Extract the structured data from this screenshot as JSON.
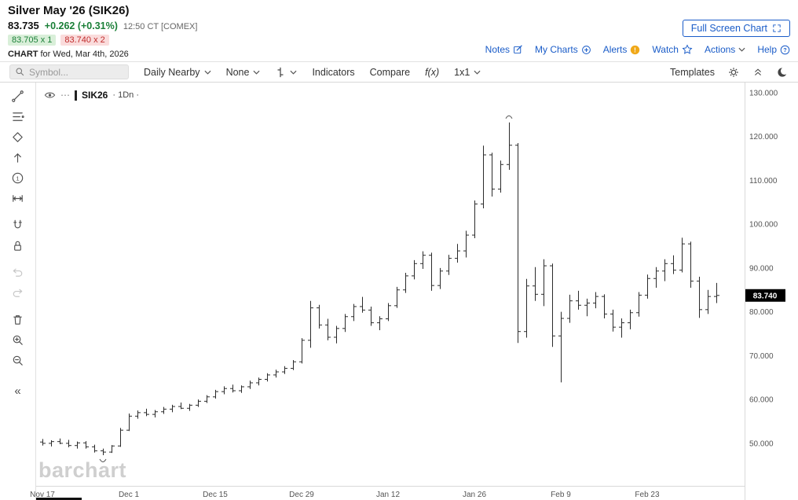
{
  "header": {
    "title": "Silver May '26 (SIK26)",
    "last_price": "83.735",
    "change": "+0.262 (+0.31%)",
    "quote_time": "12:50 CT [COMEX]",
    "bid": "83.705 x 1",
    "ask": "83.740 x 2",
    "chart_label": "CHART",
    "chart_date": "for Wed, Mar 4th, 2026",
    "full_screen_button": "Full Screen Chart",
    "links": [
      {
        "label": "Notes"
      },
      {
        "label": "My Charts"
      },
      {
        "label": "Alerts"
      },
      {
        "label": "Watch"
      },
      {
        "label": "Actions"
      },
      {
        "label": "Help"
      }
    ]
  },
  "toolbar": {
    "symbol_placeholder": "Symbol...",
    "frequency": "Daily Nearby",
    "drawing_tool": "None",
    "indicators": "Indicators",
    "compare": "Compare",
    "fx": "f(x)",
    "layout": "1x1",
    "templates": "Templates"
  },
  "chart": {
    "legend_symbol": "SIK26",
    "legend_interval": "· 1Dn ·",
    "watermark": "barchart"
  },
  "icons": {
    "dots": "⋯",
    "collapse": "«",
    "one": "1",
    "exclaim": "!",
    "question": "?"
  },
  "colors": {
    "link_blue": "#1a5cc8",
    "up_green": "#1a7f37",
    "down_red": "#c02b2b",
    "bid_bg": "#d9efd9",
    "ask_bg": "#fadcdc",
    "bar": "#2b2b2b",
    "axis_text": "#555555",
    "price_tag_bg": "#000000"
  },
  "chart_data": {
    "type": "ohlc-bar",
    "title": "Silver May '26 (SIK26) Daily Nearby",
    "symbol": "SIK26",
    "interval": "1Dn",
    "ylim": [
      40.3,
      132.3
    ],
    "yticks": [
      {
        "v": 130,
        "label": "130.000"
      },
      {
        "v": 120,
        "label": "120.000"
      },
      {
        "v": 110,
        "label": "110.000"
      },
      {
        "v": 100,
        "label": "100.000"
      },
      {
        "v": 90,
        "label": "90.000"
      },
      {
        "v": 80,
        "label": "80.000"
      },
      {
        "v": 70,
        "label": "70.000"
      },
      {
        "v": 60,
        "label": "60.000"
      },
      {
        "v": 50,
        "label": "50.000"
      }
    ],
    "xticks": [
      {
        "i": 0,
        "label": "Nov 17"
      },
      {
        "i": 10,
        "label": "Dec 1"
      },
      {
        "i": 20,
        "label": "Dec 15"
      },
      {
        "i": 30,
        "label": "Dec 29"
      },
      {
        "i": 40,
        "label": "Jan 12"
      },
      {
        "i": 50,
        "label": "Jan 26"
      },
      {
        "i": 60,
        "label": "Feb 9"
      },
      {
        "i": 70,
        "label": "Feb 23"
      }
    ],
    "last": 83.74,
    "last_label": "83.740",
    "bars": [
      [
        50.3,
        51.0,
        49.5,
        50.0
      ],
      [
        50.0,
        50.7,
        49.3,
        50.4
      ],
      [
        50.4,
        51.1,
        49.8,
        50.0
      ],
      [
        50.0,
        50.8,
        49.1,
        49.5
      ],
      [
        49.5,
        50.4,
        48.8,
        50.1
      ],
      [
        50.1,
        50.5,
        48.8,
        49.2
      ],
      [
        49.2,
        49.7,
        47.9,
        48.3
      ],
      [
        48.3,
        48.8,
        47.3,
        48.0
      ],
      [
        48.0,
        49.6,
        47.8,
        49.4
      ],
      [
        49.4,
        53.5,
        49.2,
        53.0
      ],
      [
        53.0,
        56.8,
        52.8,
        56.2
      ],
      [
        56.2,
        57.5,
        55.6,
        57.0
      ],
      [
        57.0,
        57.9,
        56.2,
        56.6
      ],
      [
        56.6,
        57.6,
        55.9,
        57.2
      ],
      [
        57.2,
        58.3,
        56.7,
        57.8
      ],
      [
        57.8,
        58.8,
        57.1,
        58.4
      ],
      [
        58.4,
        59.3,
        57.8,
        58.0
      ],
      [
        58.0,
        59.0,
        57.4,
        58.7
      ],
      [
        58.7,
        60.0,
        58.3,
        59.6
      ],
      [
        59.6,
        61.0,
        59.2,
        60.6
      ],
      [
        60.6,
        62.2,
        60.2,
        61.8
      ],
      [
        61.8,
        63.0,
        61.2,
        62.5
      ],
      [
        62.5,
        63.4,
        61.6,
        62.0
      ],
      [
        62.0,
        63.2,
        61.5,
        62.9
      ],
      [
        62.9,
        64.3,
        62.4,
        63.8
      ],
      [
        63.8,
        65.0,
        63.2,
        64.6
      ],
      [
        64.6,
        66.0,
        64.1,
        65.6
      ],
      [
        65.6,
        66.8,
        65.0,
        66.3
      ],
      [
        66.3,
        67.6,
        65.8,
        67.1
      ],
      [
        67.1,
        69.0,
        66.7,
        68.6
      ],
      [
        68.6,
        74.0,
        68.2,
        73.5
      ],
      [
        73.5,
        82.5,
        71.8,
        80.9
      ],
      [
        80.9,
        81.6,
        76.2,
        77.0
      ],
      [
        77.0,
        78.4,
        73.5,
        74.2
      ],
      [
        74.2,
        76.8,
        72.8,
        76.2
      ],
      [
        76.2,
        79.5,
        75.4,
        78.9
      ],
      [
        78.9,
        81.8,
        77.9,
        81.2
      ],
      [
        81.2,
        83.4,
        79.8,
        80.4
      ],
      [
        80.4,
        81.2,
        76.8,
        77.5
      ],
      [
        77.5,
        79.0,
        75.8,
        78.4
      ],
      [
        78.4,
        82.0,
        77.9,
        81.4
      ],
      [
        81.4,
        85.7,
        80.9,
        85.0
      ],
      [
        85.0,
        88.9,
        84.3,
        88.2
      ],
      [
        88.2,
        91.8,
        87.4,
        91.0
      ],
      [
        91.0,
        93.8,
        89.8,
        92.9
      ],
      [
        92.9,
        93.5,
        84.8,
        86.0
      ],
      [
        86.0,
        90.0,
        85.2,
        89.3
      ],
      [
        89.3,
        93.0,
        88.4,
        92.2
      ],
      [
        92.2,
        95.5,
        91.2,
        93.9
      ],
      [
        93.9,
        98.5,
        92.4,
        97.5
      ],
      [
        97.5,
        105.4,
        96.8,
        104.6
      ],
      [
        104.6,
        117.9,
        103.6,
        115.8
      ],
      [
        115.8,
        116.3,
        106.3,
        108.0
      ],
      [
        108.0,
        114.5,
        107.2,
        113.6
      ],
      [
        113.6,
        123.2,
        112.4,
        118.0
      ],
      [
        118.0,
        118.5,
        72.9,
        75.5
      ],
      [
        75.5,
        87.5,
        74.1,
        85.9
      ],
      [
        85.9,
        90.2,
        82.5,
        84.0
      ],
      [
        84.0,
        92.0,
        81.3,
        90.5
      ],
      [
        90.5,
        91.0,
        72.0,
        74.5
      ],
      [
        74.5,
        80.0,
        63.9,
        78.5
      ],
      [
        78.5,
        83.9,
        77.5,
        82.5
      ],
      [
        82.5,
        84.8,
        80.5,
        81.5
      ],
      [
        81.5,
        83.0,
        79.0,
        82.0
      ],
      [
        82.0,
        84.5,
        80.8,
        83.5
      ],
      [
        83.5,
        84.0,
        78.5,
        79.5
      ],
      [
        79.5,
        80.5,
        75.5,
        76.5
      ],
      [
        76.5,
        78.5,
        74.1,
        77.5
      ],
      [
        77.5,
        80.5,
        76.0,
        79.8
      ],
      [
        79.8,
        84.5,
        78.9,
        83.8
      ],
      [
        83.8,
        88.5,
        83.0,
        87.6
      ],
      [
        87.6,
        90.2,
        85.5,
        89.3
      ],
      [
        89.3,
        92.0,
        87.0,
        91.0
      ],
      [
        91.0,
        92.9,
        88.6,
        89.5
      ],
      [
        89.5,
        96.9,
        89.0,
        95.5
      ],
      [
        95.5,
        96.0,
        85.5,
        87.0
      ],
      [
        87.0,
        88.0,
        78.6,
        80.5
      ],
      [
        80.5,
        85.0,
        79.5,
        83.5
      ],
      [
        83.5,
        86.6,
        82.0,
        83.74
      ]
    ],
    "annotations": [
      {
        "bar": 7,
        "side": "below"
      },
      {
        "bar": 54,
        "side": "above"
      }
    ]
  }
}
